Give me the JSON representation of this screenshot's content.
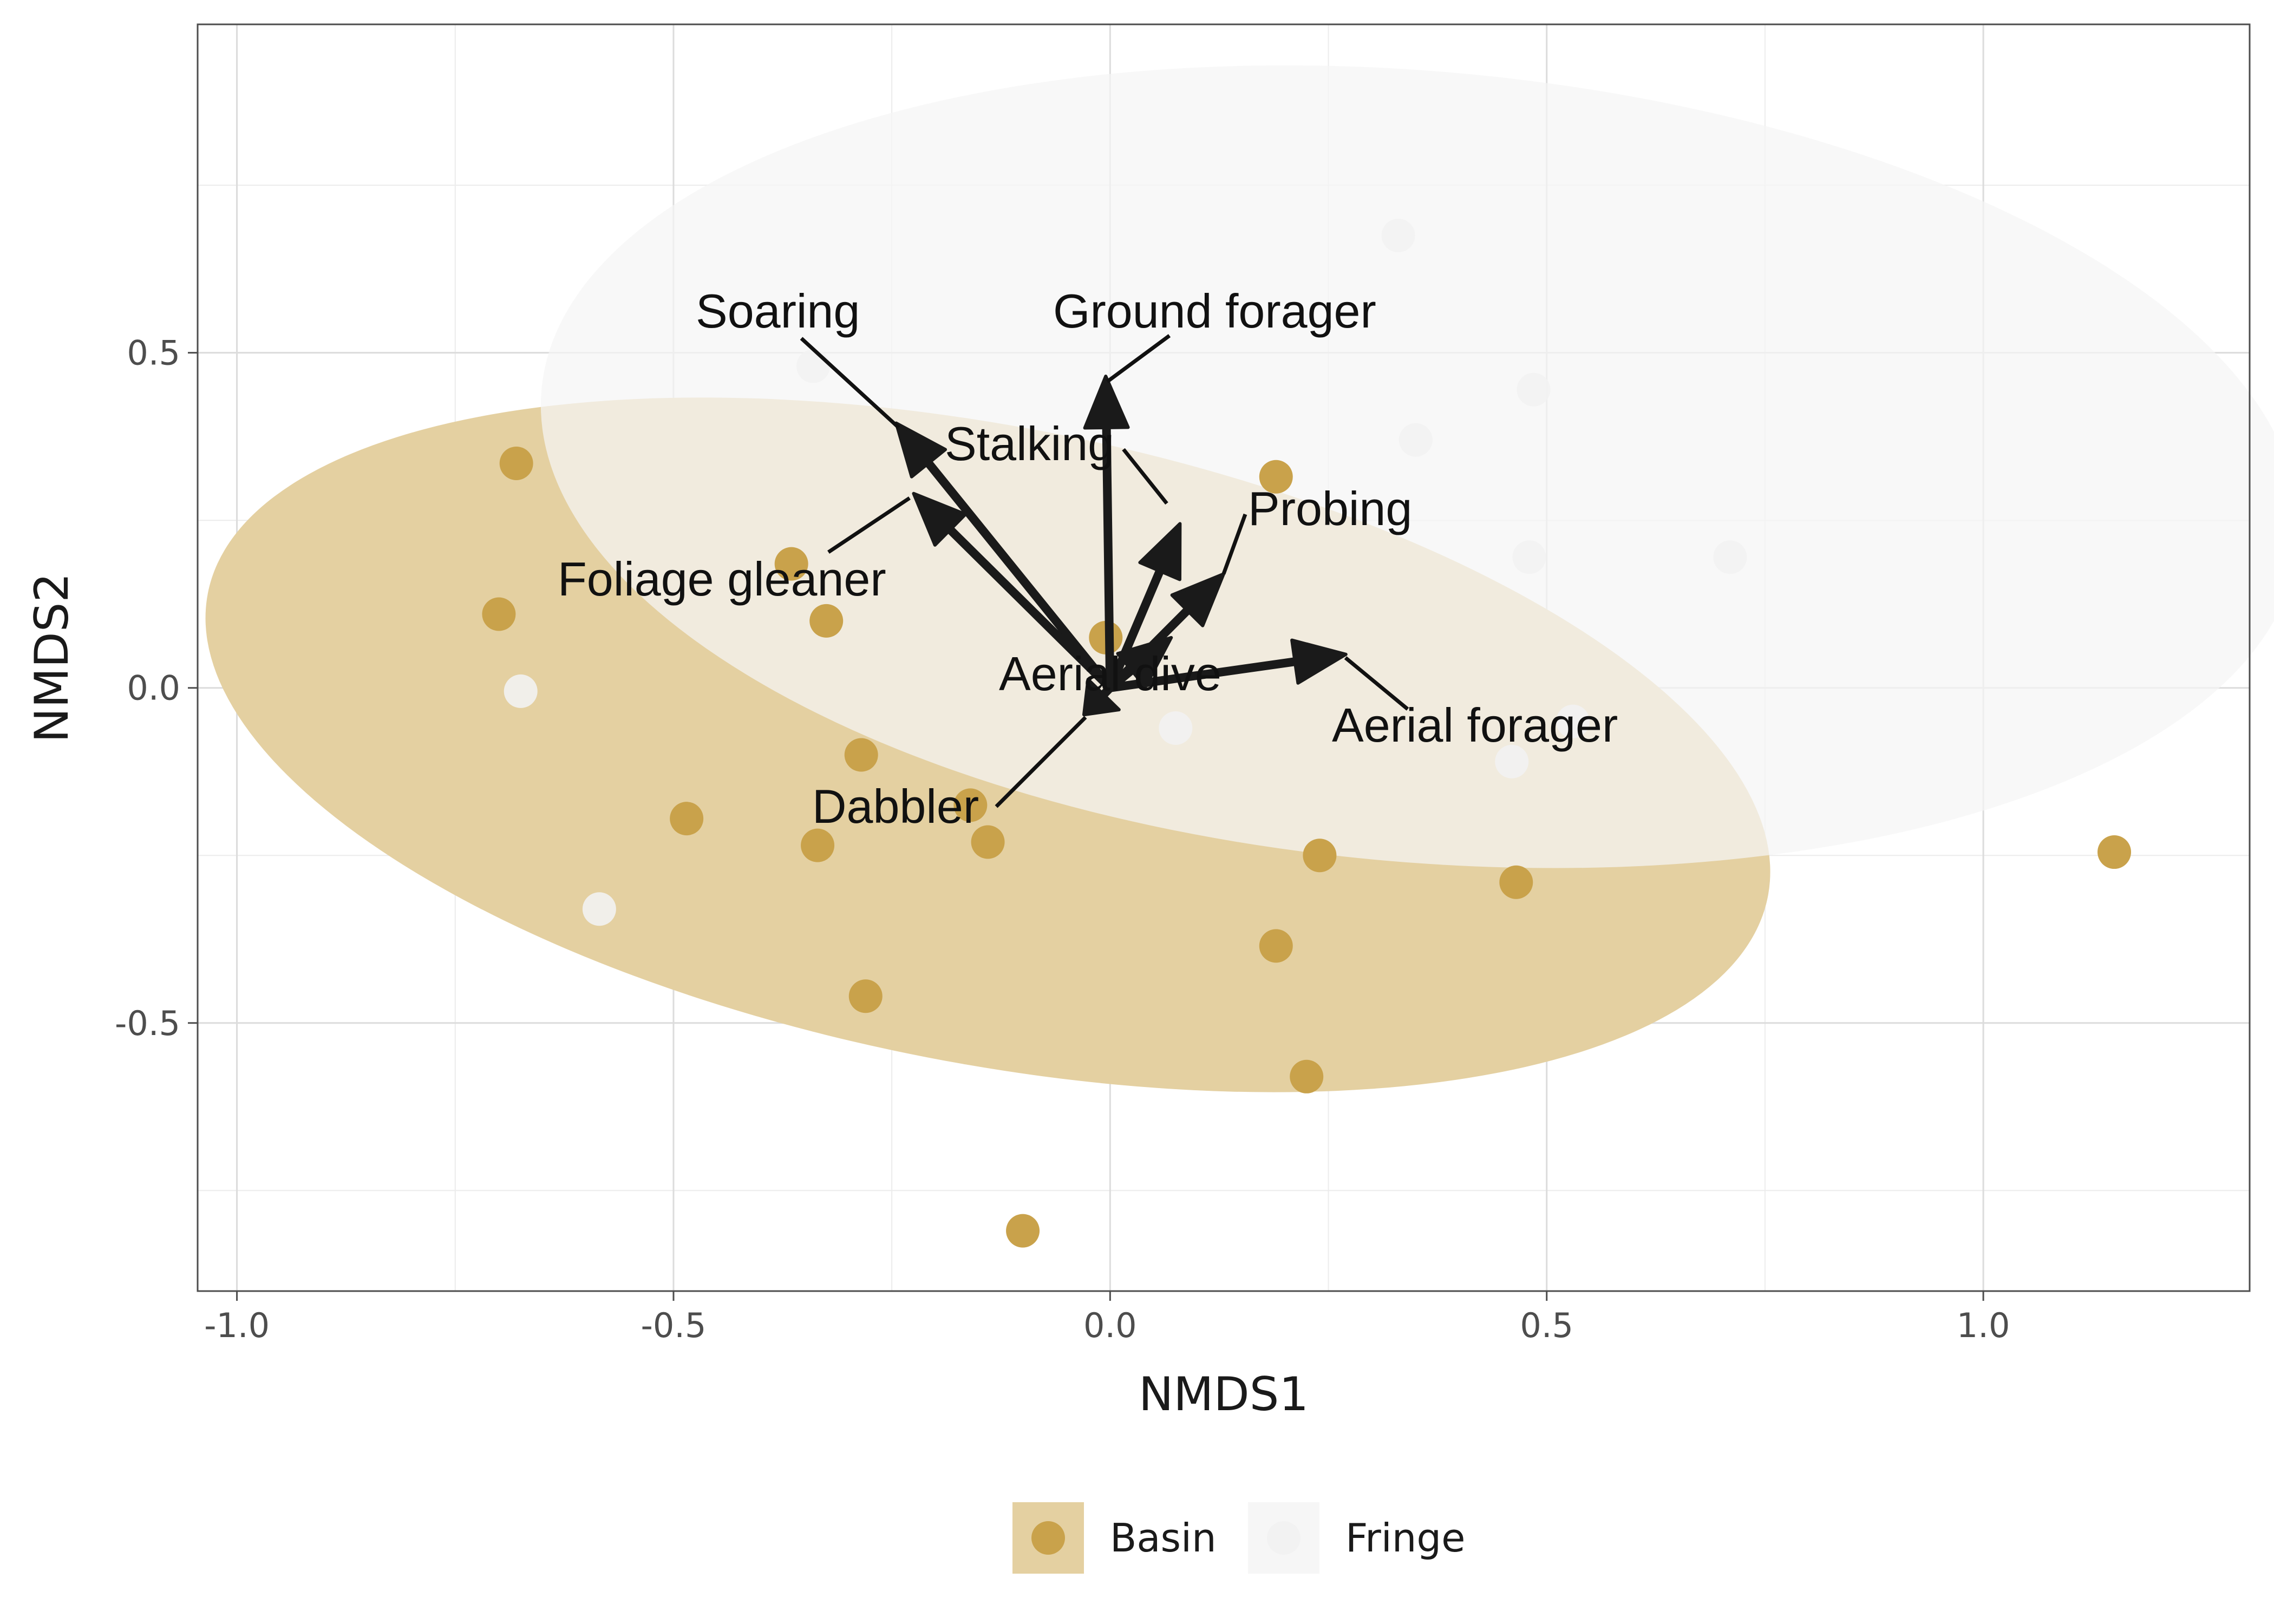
{
  "chart_data": {
    "type": "scatter",
    "xlabel": "NMDS1",
    "ylabel": "NMDS2",
    "xlim": [
      -1.045,
      1.305
    ],
    "ylim": [
      -0.9,
      0.99
    ],
    "x_ticks": [
      -1.0,
      -0.5,
      0.0,
      0.5,
      1.0
    ],
    "x_tick_labels": [
      "-1.0",
      "-0.5",
      "0.0",
      "0.5",
      "1.0"
    ],
    "y_ticks": [
      -0.5,
      0.0,
      0.5
    ],
    "y_tick_labels": [
      "-0.5",
      "0.0",
      "0.5"
    ],
    "grid": true,
    "legend_position": "bottom",
    "series": [
      {
        "name": "Basin",
        "color": "#C9A24B",
        "ellipse_fill": "#E4D0A1",
        "points": [
          {
            "x": -0.68,
            "y": 0.335
          },
          {
            "x": -0.7,
            "y": 0.11
          },
          {
            "x": -0.365,
            "y": 0.185
          },
          {
            "x": -0.325,
            "y": 0.1
          },
          {
            "x": -0.285,
            "y": -0.1
          },
          {
            "x": -0.485,
            "y": -0.195
          },
          {
            "x": -0.335,
            "y": -0.235
          },
          {
            "x": -0.16,
            "y": -0.175
          },
          {
            "x": -0.14,
            "y": -0.23
          },
          {
            "x": -0.28,
            "y": -0.46
          },
          {
            "x": -0.005,
            "y": 0.075
          },
          {
            "x": 0.19,
            "y": 0.315
          },
          {
            "x": 0.19,
            "y": -0.385
          },
          {
            "x": 0.24,
            "y": -0.25
          },
          {
            "x": 0.225,
            "y": -0.58
          },
          {
            "x": 0.465,
            "y": -0.29
          },
          {
            "x": -0.1,
            "y": -0.81
          },
          {
            "x": 1.15,
            "y": -0.245
          }
        ]
      },
      {
        "name": "Fringe",
        "color": "#F2F2F2",
        "ellipse_fill": "#F5F5F5",
        "points": [
          {
            "x": 0.33,
            "y": 0.675
          },
          {
            "x": 0.485,
            "y": 0.445
          },
          {
            "x": 0.35,
            "y": 0.37
          },
          {
            "x": 0.48,
            "y": 0.195
          },
          {
            "x": 0.71,
            "y": 0.195
          },
          {
            "x": -0.34,
            "y": 0.48
          },
          {
            "x": -0.675,
            "y": -0.005
          },
          {
            "x": -0.585,
            "y": -0.33
          },
          {
            "x": 0.46,
            "y": -0.11
          },
          {
            "x": 0.53,
            "y": -0.05
          },
          {
            "x": 0.075,
            "y": -0.06
          }
        ]
      }
    ],
    "vectors": [
      {
        "label": "Soaring",
        "x": -0.245,
        "y": 0.395
      },
      {
        "label": "Foliage gleaner",
        "x": -0.225,
        "y": 0.29
      },
      {
        "label": "Ground forager",
        "x": -0.005,
        "y": 0.465
      },
      {
        "label": "Stalking",
        "x": 0.08,
        "y": 0.245
      },
      {
        "label": "Probing",
        "x": 0.13,
        "y": 0.17
      },
      {
        "label": "Aerial forager",
        "x": 0.27,
        "y": 0.05
      },
      {
        "label": "Aerial dive",
        "x": 0.07,
        "y": 0.075
      },
      {
        "label": "Dabbler",
        "x": -0.03,
        "y": -0.04
      }
    ]
  },
  "legend": {
    "items": [
      {
        "label": "Basin",
        "color": "#C9A24B",
        "key_fill": "#E4D0A1"
      },
      {
        "label": "Fringe",
        "color": "#F2F2F2",
        "key_fill": "#F5F5F5"
      }
    ]
  }
}
